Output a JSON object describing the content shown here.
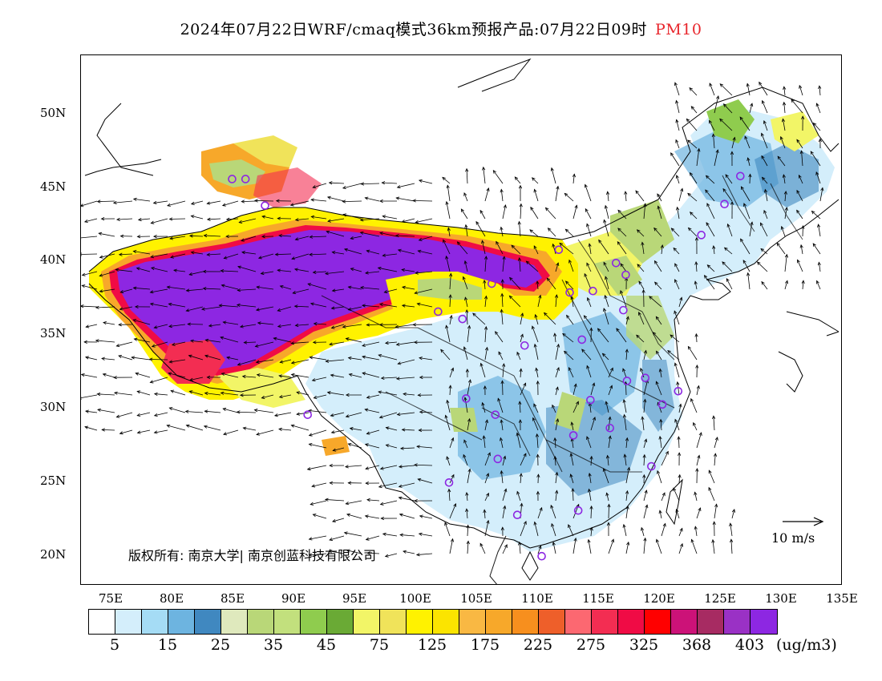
{
  "title": {
    "main": "2024年07月22日WRF/cmaq模式36km预报产品:07月22日09时",
    "pollutant": "PM10"
  },
  "axes": {
    "lat_labels": [
      "50N",
      "45N",
      "40N",
      "35N",
      "30N",
      "25N",
      "20N"
    ],
    "lon_labels": [
      "75E",
      "80E",
      "85E",
      "90E",
      "95E",
      "100E",
      "105E",
      "110E",
      "115E",
      "120E",
      "125E",
      "130E",
      "135E"
    ],
    "lat_range": [
      18,
      54
    ],
    "lon_range": [
      72.5,
      135
    ]
  },
  "copyright": "版权所有: 南京大学| 南京创蓝科技有限公司",
  "wind_scale_label": "10 m/s",
  "colorbar": {
    "colors": [
      "#ffffff",
      "#d4eefb",
      "#a5dcf5",
      "#6db4e0",
      "#4088c0",
      "#dfe9bd",
      "#b9d778",
      "#c2e07d",
      "#8fcc4e",
      "#6aaa35",
      "#f2f567",
      "#f0e35a",
      "#fff200",
      "#fbe400",
      "#f9b843",
      "#f7a82a",
      "#f78f1e",
      "#ee5f2a",
      "#fc6871",
      "#f32d52",
      "#f00b45",
      "#ff0000",
      "#cc1278",
      "#a72b62",
      "#9a31c5",
      "#8d27e2"
    ],
    "labels": [
      "5",
      "15",
      "25",
      "35",
      "45",
      "75",
      "125",
      "175",
      "225",
      "275",
      "325",
      "368",
      "403"
    ],
    "unit": "(ug/m3)"
  },
  "stations": [
    [
      87.6,
      43.8
    ],
    [
      86.0,
      45.6
    ],
    [
      84.9,
      45.6
    ],
    [
      91.1,
      29.6
    ],
    [
      101.8,
      36.6
    ],
    [
      103.8,
      36.1
    ],
    [
      106.2,
      38.5
    ],
    [
      111.7,
      40.8
    ],
    [
      112.6,
      37.9
    ],
    [
      114.5,
      38.0
    ],
    [
      116.4,
      39.9
    ],
    [
      117.2,
      39.1
    ],
    [
      117.0,
      36.7
    ],
    [
      113.6,
      34.7
    ],
    [
      108.9,
      34.3
    ],
    [
      104.1,
      30.7
    ],
    [
      106.5,
      29.6
    ],
    [
      106.7,
      26.6
    ],
    [
      102.7,
      25.0
    ],
    [
      108.3,
      22.8
    ],
    [
      110.3,
      20.0
    ],
    [
      113.3,
      23.1
    ],
    [
      112.9,
      28.2
    ],
    [
      114.3,
      30.6
    ],
    [
      115.9,
      28.7
    ],
    [
      117.3,
      31.9
    ],
    [
      118.8,
      32.1
    ],
    [
      120.2,
      30.3
    ],
    [
      121.5,
      31.2
    ],
    [
      119.3,
      26.1
    ],
    [
      123.4,
      41.8
    ],
    [
      125.3,
      43.9
    ],
    [
      126.6,
      45.8
    ]
  ]
}
